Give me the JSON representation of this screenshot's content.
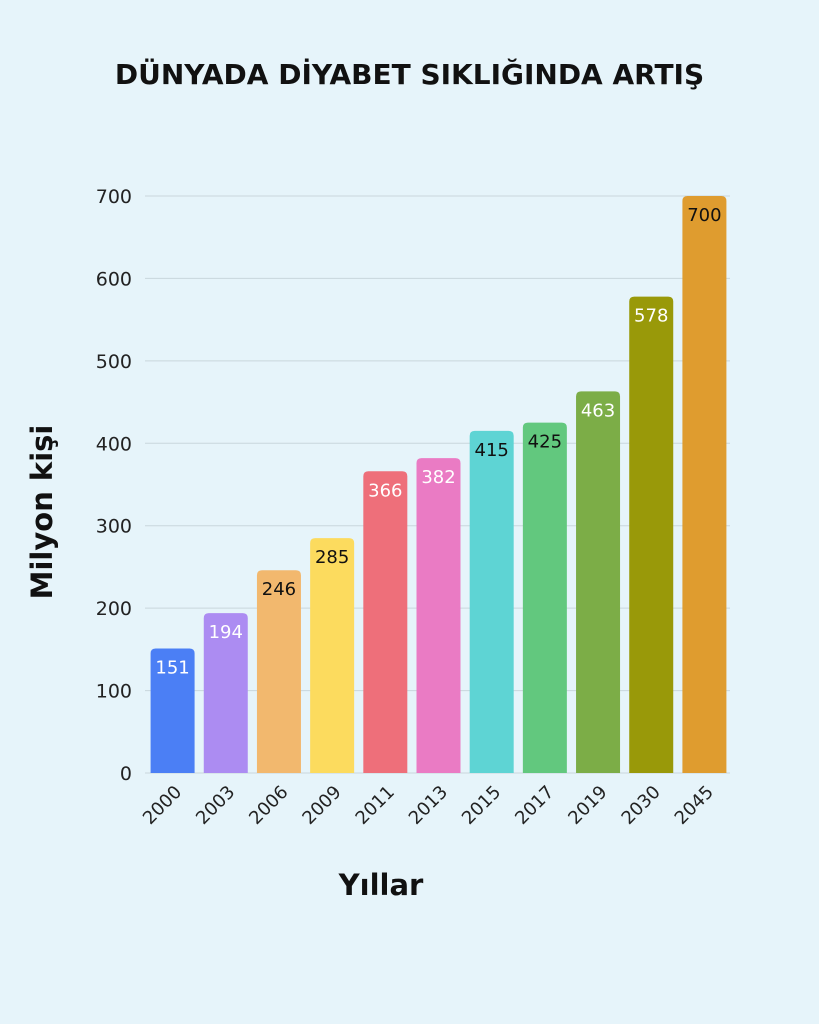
{
  "chart_data": {
    "type": "bar",
    "title": "DÜNYADA DİYABET SIKLIĞINDA ARTIŞ",
    "xlabel": "Yıllar",
    "ylabel": "Milyon kişi",
    "categories": [
      "2000",
      "2003",
      "2006",
      "2009",
      "2011",
      "2013",
      "2015",
      "2017",
      "2019",
      "2030",
      "2045"
    ],
    "values": [
      151,
      194,
      246,
      285,
      366,
      382,
      415,
      425,
      463,
      578,
      700
    ],
    "data_labels": [
      "151",
      "194",
      "246",
      "285",
      "366",
      "382",
      "415",
      "425",
      "463",
      "578",
      "700"
    ],
    "bar_colors": [
      "#4b7ff5",
      "#ac8cf2",
      "#f2b86e",
      "#fcdb5e",
      "#ee6f7a",
      "#ea7bc4",
      "#5ed4d4",
      "#62c87e",
      "#7cad47",
      "#999909",
      "#df9c2f"
    ],
    "label_colors": [
      "#ffffff",
      "#ffffff",
      "#111111",
      "#111111",
      "#ffffff",
      "#ffffff",
      "#111111",
      "#111111",
      "#ffffff",
      "#ffffff",
      "#111111"
    ],
    "yticks": [
      "0",
      "100",
      "200",
      "300",
      "400",
      "500",
      "600",
      "700"
    ],
    "ylim": [
      0,
      700
    ],
    "grid": true,
    "legend": "none"
  }
}
